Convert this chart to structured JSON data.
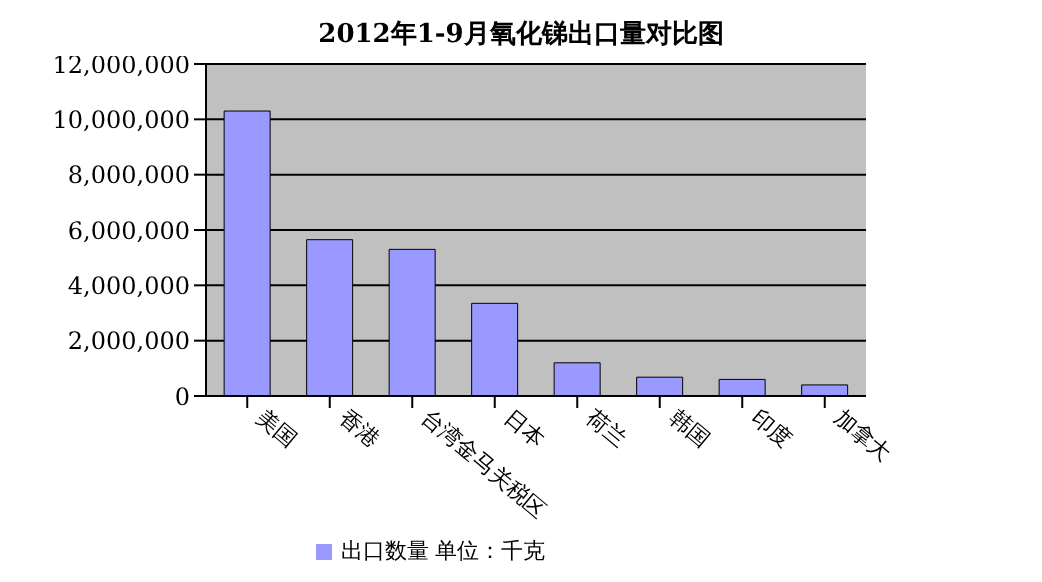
{
  "chart_data": {
    "type": "bar",
    "title": "2012年1-9月氧化锑出口量对比图",
    "categories": [
      "美国",
      "香港",
      "台湾金马关税区",
      "日本",
      "荷兰",
      "韩国",
      "印度",
      "加拿大"
    ],
    "series": [
      {
        "name": "出口数量 单位：千克",
        "color": "#9999ff",
        "values": [
          10300000,
          5650000,
          5300000,
          3350000,
          1200000,
          680000,
          600000,
          400000
        ]
      }
    ],
    "ylim": [
      0,
      12000000
    ],
    "yticks": [
      {
        "value": 0,
        "label": "0"
      },
      {
        "value": 2000000,
        "label": "2,000,000"
      },
      {
        "value": 4000000,
        "label": "4,000,000"
      },
      {
        "value": 6000000,
        "label": "6,000,000"
      },
      {
        "value": 8000000,
        "label": "8,000,000"
      },
      {
        "value": 10000000,
        "label": "10,000,000"
      },
      {
        "value": 12000000,
        "label": "12,000,000"
      }
    ],
    "grid": "y",
    "legend": "bottom"
  }
}
